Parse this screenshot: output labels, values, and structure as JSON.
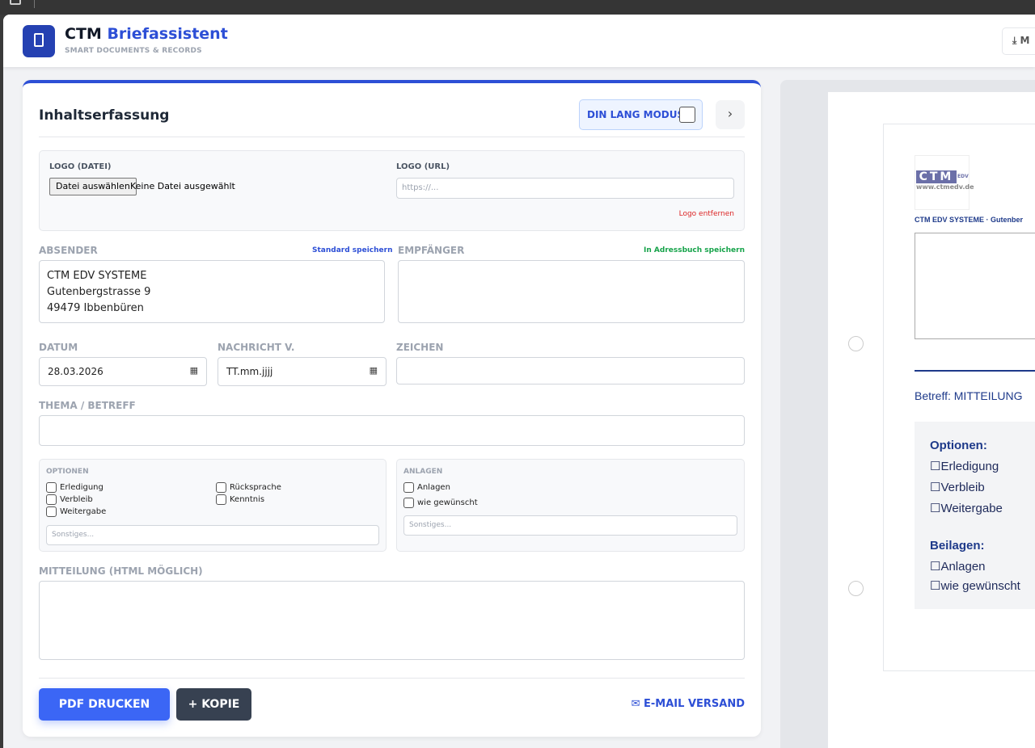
{
  "app": {
    "brand_prefix": "CTM",
    "brand_name": "Briefassistent",
    "subtitle": "SMART DOCUMENTS & RECORDS",
    "header_button": "M"
  },
  "form": {
    "title": "Inhaltserfassung",
    "din_lang_label": "DIN LANG MODUS",
    "logo_file_label": "LOGO (DATEI)",
    "file_button": "Datei auswählen",
    "file_status": "Keine Datei ausgewählt",
    "logo_url_label": "LOGO (URL)",
    "logo_url_placeholder": "https://...",
    "logo_remove": "Logo entfernen",
    "sender_label": "ABSENDER",
    "sender_save": "Standard speichern",
    "sender_lines": [
      "CTM EDV SYSTEME",
      "Gutenbergstrasse 9",
      "49479 Ibbenbüren"
    ],
    "recipient_label": "EMPFÄNGER",
    "recipient_save": "In Adressbuch speichern",
    "date_label": "DATUM",
    "date_value": "28.03.2026",
    "msg_date_label": "NACHRICHT V.",
    "msg_date_placeholder": "TT.mm.jjjj",
    "sign_label": "ZEICHEN",
    "subject_label": "THEMA / BETREFF",
    "options_label": "OPTIONEN",
    "options": [
      "Erledigung",
      "Verbleib",
      "Weitergabe",
      "Rücksprache",
      "Kenntnis"
    ],
    "options_other": "Sonstiges...",
    "attachments_label": "ANLAGEN",
    "attachments": [
      "Anlagen",
      "wie gewünscht"
    ],
    "attachments_other": "Sonstiges...",
    "message_label": "MITTEILUNG (HTML MÖGLICH)",
    "print_button": "PDF DRUCKEN",
    "copy_button": "+ KOPIE",
    "email_button": "E-MAIL VERSAND"
  },
  "preview": {
    "logo_text": "CTM",
    "logo_sub": "EDV",
    "logo_url": "www.ctmedv.de",
    "sender_line": "CTM EDV SYSTEME · Gutenber",
    "subject": "Betreff: MITTEILUNG",
    "options_title": "Optionen:",
    "options": [
      "Erledigung",
      "Verbleib",
      "Weitergabe"
    ],
    "attachments_title": "Beilagen:",
    "attachments": [
      "Anlagen",
      "wie gewünscht"
    ]
  },
  "colors": {
    "accent": "#2d4fd6",
    "logo_bg": "#2541b2",
    "danger": "#dc2626",
    "success": "#16a34a",
    "dark_button": "#374151"
  }
}
